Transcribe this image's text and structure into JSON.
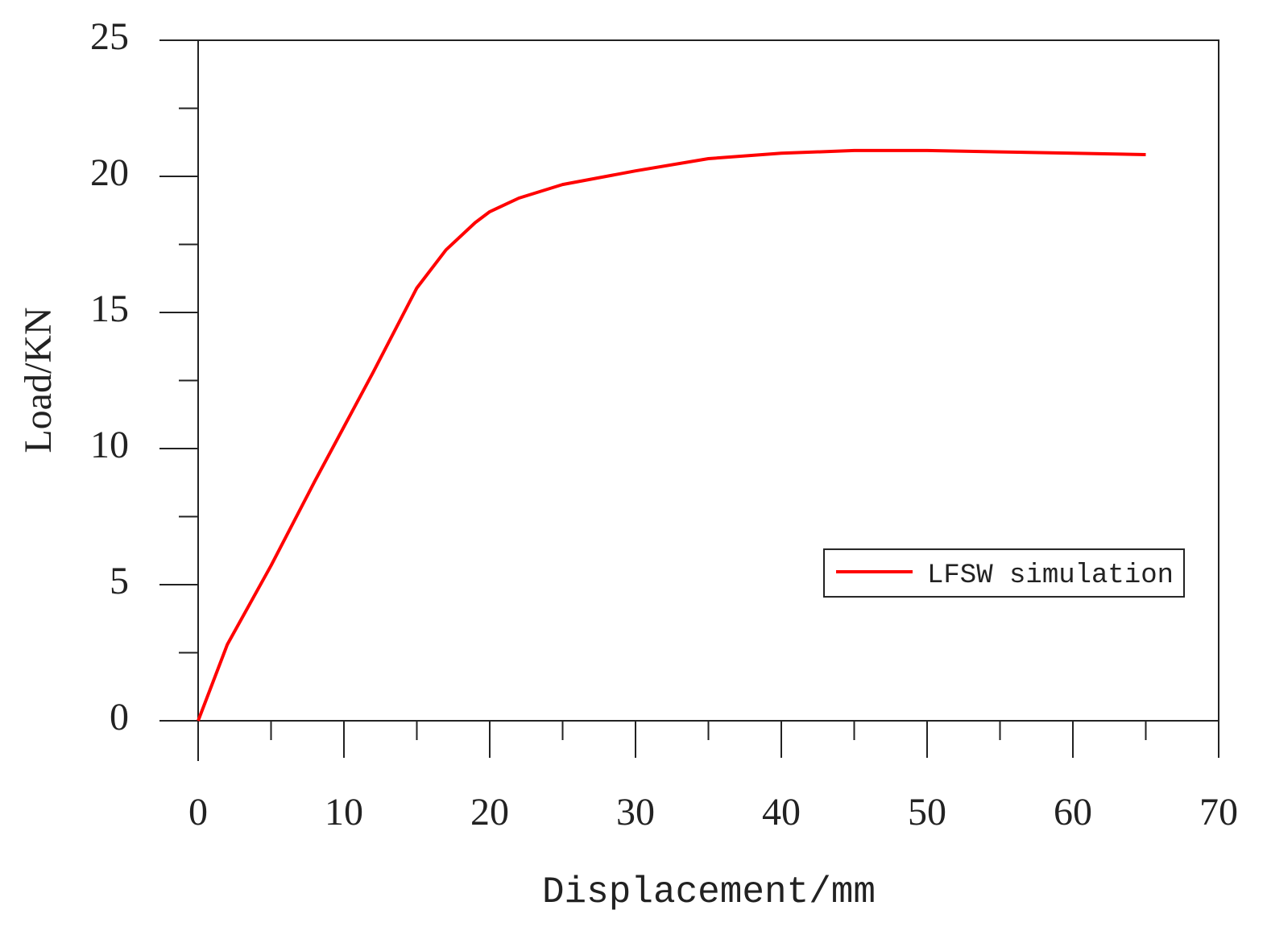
{
  "chart_data": {
    "type": "line",
    "x_label": "Displacement/mm",
    "y_label": "Load/KN",
    "xlim": [
      0,
      70
    ],
    "xticks": [
      0,
      10,
      20,
      30,
      40,
      50,
      60,
      70
    ],
    "xminorticks": [
      5,
      15,
      25,
      35,
      45,
      55,
      65
    ],
    "ylim": [
      0,
      25
    ],
    "yticks": [
      0,
      5,
      10,
      15,
      20,
      25
    ],
    "yminorticks": [
      2.5,
      7.5,
      12.5,
      17.5,
      22.5
    ],
    "legend": "center right",
    "series": [
      {
        "name": "LFSW simulation",
        "color": "#ff0000",
        "x": [
          0,
          2,
          5,
          8,
          10,
          12,
          15,
          17,
          19,
          20,
          22,
          25,
          30,
          35,
          40,
          45,
          50,
          55,
          60,
          65
        ],
        "values": [
          0,
          2.8,
          5.7,
          8.8,
          10.8,
          12.8,
          15.9,
          17.3,
          18.3,
          18.7,
          19.2,
          19.7,
          20.2,
          20.65,
          20.85,
          20.95,
          20.95,
          20.9,
          20.85,
          20.8
        ]
      }
    ]
  }
}
